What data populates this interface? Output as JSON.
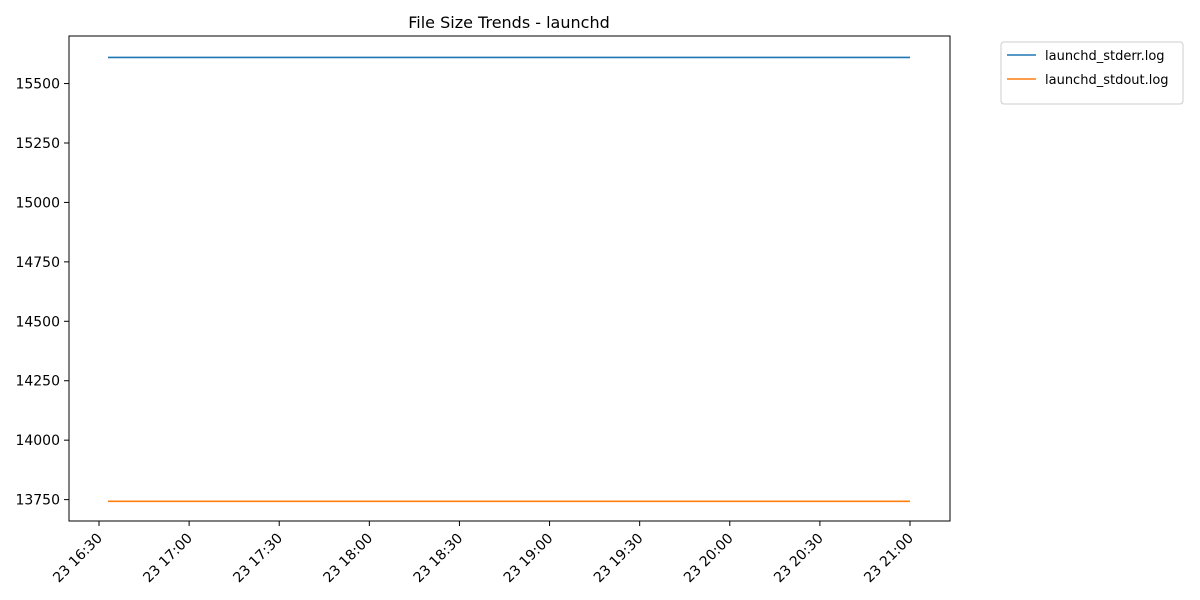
{
  "chart_data": {
    "type": "line",
    "title": "File Size Trends - launchd",
    "xlabel": "",
    "ylabel": "",
    "x_ticks": [
      "23 16:30",
      "23 17:00",
      "23 17:30",
      "23 18:00",
      "23 18:30",
      "23 19:00",
      "23 19:30",
      "23 20:00",
      "23 20:30",
      "23 21:00"
    ],
    "x_range": [
      "2023-?-23 16:30",
      "2023-?-23 21:00"
    ],
    "y_ticks": [
      13750,
      14000,
      14250,
      14500,
      14750,
      15000,
      15250,
      15500
    ],
    "ylim": [
      13660,
      15700
    ],
    "grid": false,
    "legend_position": "outside top-right",
    "series": [
      {
        "name": "launchd_stderr.log",
        "color": "#1f77b4",
        "x": [
          "16:33",
          "21:00"
        ],
        "values": [
          15610,
          15610
        ]
      },
      {
        "name": "launchd_stdout.log",
        "color": "#ff7f0e",
        "x": [
          "16:33",
          "21:00"
        ],
        "values": [
          13743,
          13743
        ]
      }
    ]
  }
}
